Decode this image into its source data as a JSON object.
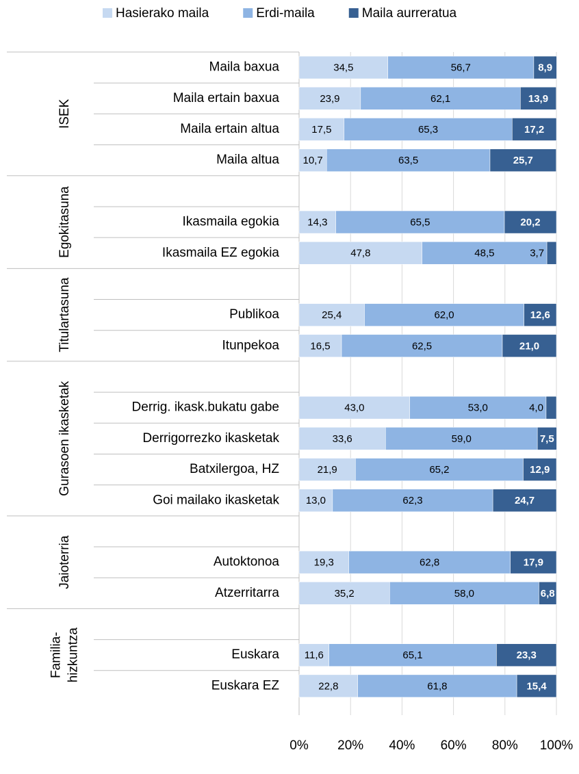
{
  "chart_data": {
    "type": "stacked-bar-horizontal",
    "groups": [
      {
        "name": [
          "ISEK"
        ],
        "categories": [
          "Maila baxua",
          "Maila ertain baxua",
          "Maila ertain altua",
          "Maila altua"
        ]
      },
      {
        "name": [
          "Egokitasuna"
        ],
        "categories": [
          null,
          "Ikasmaila egokia",
          "Ikasmaila EZ egokia"
        ]
      },
      {
        "name": [
          "Titulartasuna"
        ],
        "categories": [
          null,
          "Publikoa",
          "Itunpekoa"
        ]
      },
      {
        "name": [
          "Gurasoen ikasketak"
        ],
        "categories": [
          null,
          "Derrig. ikask.bukatu gabe",
          "Derrigorrezko ikasketak",
          "Batxilergoa, HZ",
          "Goi mailako ikasketak"
        ]
      },
      {
        "name": [
          "Jaioterria"
        ],
        "categories": [
          null,
          "Autoktonoa",
          "Atzerritarra"
        ]
      },
      {
        "name": [
          "Familia-",
          "hizkuntza"
        ],
        "categories": [
          null,
          "Euskara",
          "Euskara EZ"
        ]
      }
    ],
    "series": [
      {
        "name": "Hasierako maila",
        "color": "#c6d9f1",
        "values": [
          34.5,
          23.9,
          17.5,
          10.7,
          null,
          14.3,
          47.8,
          null,
          25.4,
          16.5,
          null,
          43.0,
          33.6,
          21.9,
          13.0,
          null,
          19.3,
          35.2,
          null,
          11.6,
          22.8
        ],
        "value_labels": [
          "34,5",
          "23,9",
          "17,5",
          "10,7",
          null,
          "14,3",
          "47,8",
          null,
          "25,4",
          "16,5",
          null,
          "43,0",
          "33,6",
          "21,9",
          "13,0",
          null,
          "19,3",
          "35,2",
          null,
          "11,6",
          "22,8"
        ]
      },
      {
        "name": "Erdi-maila",
        "color": "#8eb4e3",
        "values": [
          56.7,
          62.1,
          65.3,
          63.5,
          null,
          65.5,
          48.5,
          null,
          62.0,
          62.5,
          null,
          53.0,
          59.0,
          65.2,
          62.3,
          null,
          62.8,
          58.0,
          null,
          65.1,
          61.8
        ],
        "value_labels": [
          "56,7",
          "62,1",
          "65,3",
          "63,5",
          null,
          "65,5",
          "48,5",
          null,
          "62,0",
          "62,5",
          null,
          "53,0",
          "59,0",
          "65,2",
          "62,3",
          null,
          "62,8",
          "58,0",
          null,
          "65,1",
          "61,8"
        ]
      },
      {
        "name": "Maila aurreratua",
        "color": "#376092",
        "values": [
          8.9,
          13.9,
          17.2,
          25.7,
          null,
          20.2,
          3.7,
          null,
          12.6,
          21.0,
          null,
          4.0,
          7.5,
          12.9,
          24.7,
          null,
          17.9,
          6.8,
          null,
          23.3,
          15.4
        ],
        "value_labels": [
          "8,9",
          "13,9",
          "17,2",
          "25,7",
          null,
          "20,2",
          "3,7",
          null,
          "12,6",
          "21,0",
          null,
          "4,0",
          "7,5",
          "12,9",
          "24,7",
          null,
          "17,9",
          "6,8",
          null,
          "23,3",
          "15,4"
        ]
      }
    ],
    "xlim": [
      0,
      100
    ],
    "xticks": [
      {
        "value": 0,
        "label": "0%"
      },
      {
        "value": 20,
        "label": "20%"
      },
      {
        "value": 40,
        "label": "40%"
      },
      {
        "value": 60,
        "label": "60%"
      },
      {
        "value": 80,
        "label": "80%"
      },
      {
        "value": 100,
        "label": "100%"
      }
    ],
    "grid": true,
    "legend": "top"
  }
}
